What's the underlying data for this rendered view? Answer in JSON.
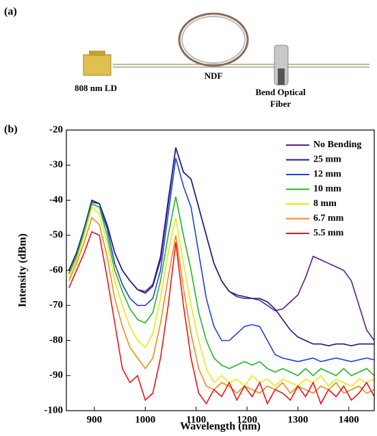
{
  "panels": {
    "a": {
      "label": "(a)",
      "ld_label": "808 nm LD",
      "fiber_label": "NDF",
      "bend_label": "Bend Optical Fiber"
    },
    "b": {
      "label": "(b)"
    }
  },
  "chart_data": {
    "type": "line",
    "x_label": "Wavelength (nm)",
    "y_label": "Intensity (dBm)",
    "xlim": [
      845,
      1450
    ],
    "ylim": [
      -100,
      -20
    ],
    "xticks": [
      900,
      1000,
      1100,
      1200,
      1300,
      1400
    ],
    "yticks": [
      -100,
      -90,
      -80,
      -70,
      -60,
      -50,
      -40,
      -30,
      -20
    ],
    "legend": "upper right",
    "x": [
      850,
      865,
      880,
      895,
      910,
      925,
      940,
      955,
      970,
      985,
      1000,
      1015,
      1030,
      1045,
      1060,
      1075,
      1090,
      1105,
      1120,
      1135,
      1150,
      1165,
      1180,
      1195,
      1210,
      1225,
      1240,
      1255,
      1270,
      1285,
      1300,
      1315,
      1330,
      1345,
      1360,
      1375,
      1390,
      1405,
      1420,
      1435,
      1450
    ],
    "series": [
      {
        "name": "No Bending",
        "color": "#5b1a8c",
        "values": [
          -60,
          -55,
          -48,
          -40.5,
          -41,
          -47,
          -55,
          -60,
          -63,
          -65.5,
          -66,
          -64,
          -56,
          -40,
          -25,
          -32,
          -34,
          -42,
          -50,
          -58,
          -63,
          -66,
          -67.5,
          -68,
          -68,
          -68.5,
          -70,
          -71.5,
          -71,
          -69,
          -67,
          -62,
          -56,
          -57,
          -58,
          -59,
          -60,
          -63,
          -70,
          -77,
          -80
        ]
      },
      {
        "name": "25 mm",
        "color": "#1a1a7a",
        "values": [
          -60,
          -55,
          -48,
          -40,
          -41,
          -47,
          -55,
          -60,
          -63,
          -65.5,
          -66.5,
          -64.5,
          -57,
          -41,
          -25,
          -32,
          -34,
          -42,
          -50,
          -58,
          -63,
          -66,
          -67,
          -67.5,
          -68,
          -68,
          -69,
          -71,
          -74,
          -77,
          -79,
          -80,
          -81,
          -81,
          -81.5,
          -81,
          -81,
          -81.5,
          -81,
          -81,
          -81
        ]
      },
      {
        "name": "12 mm",
        "color": "#1f3fe0",
        "values": [
          -61,
          -56,
          -48,
          -41,
          -42,
          -48,
          -58,
          -64,
          -68,
          -70,
          -70,
          -68,
          -60,
          -44,
          -28,
          -36,
          -42,
          -55,
          -68,
          -76,
          -80,
          -80,
          -78,
          -76,
          -75.5,
          -76,
          -80,
          -84,
          -85,
          -85.5,
          -86,
          -85.5,
          -85,
          -86,
          -85.5,
          -85,
          -85.5,
          -86,
          -85.5,
          -85,
          -85.5
        ]
      },
      {
        "name": "10 mm",
        "color": "#22b422",
        "values": [
          -61,
          -56,
          -49,
          -41,
          -42,
          -50,
          -60,
          -66,
          -71,
          -74,
          -75,
          -72,
          -63,
          -50,
          -39,
          -50,
          -60,
          -72,
          -80,
          -85,
          -87,
          -88,
          -87,
          -86,
          -87,
          -86,
          -88,
          -89,
          -88,
          -89,
          -90,
          -88,
          -90,
          -88,
          -89,
          -90,
          -88,
          -90,
          -89,
          -88,
          -90
        ]
      },
      {
        "name": "8 mm",
        "color": "#e8e812",
        "values": [
          -62,
          -57,
          -50,
          -42,
          -44,
          -52,
          -63,
          -70,
          -76,
          -80,
          -82,
          -78,
          -68,
          -55,
          -45,
          -58,
          -70,
          -80,
          -88,
          -92,
          -90,
          -92,
          -91,
          -93,
          -90,
          -92,
          -91,
          -93,
          -91,
          -92,
          -93,
          -91,
          -92,
          -90,
          -93,
          -91,
          -92,
          -93,
          -91,
          -92,
          -91
        ]
      },
      {
        "name": "6.7 mm",
        "color": "#f58a12",
        "values": [
          -63,
          -58,
          -52,
          -45,
          -47,
          -56,
          -68,
          -76,
          -82,
          -85,
          -88,
          -85,
          -75,
          -62,
          -50,
          -65,
          -78,
          -88,
          -93,
          -94,
          -92,
          -93,
          -95,
          -93,
          -94,
          -95,
          -93,
          -94,
          -92,
          -95,
          -93,
          -94,
          -95,
          -93,
          -94,
          -92,
          -95,
          -94,
          -93,
          -95,
          -94
        ]
      },
      {
        "name": "5.5 mm",
        "color": "#ee1111",
        "values": [
          -65,
          -60,
          -55,
          -49,
          -50,
          -62,
          -75,
          -88,
          -92,
          -90,
          -97,
          -95,
          -85,
          -70,
          -52,
          -70,
          -85,
          -95,
          -98,
          -94,
          -96,
          -92,
          -97,
          -93,
          -96,
          -92,
          -98,
          -94,
          -95,
          -97,
          -93,
          -96,
          -92,
          -98,
          -94,
          -96,
          -93,
          -97,
          -95,
          -92,
          -96
        ]
      }
    ]
  }
}
